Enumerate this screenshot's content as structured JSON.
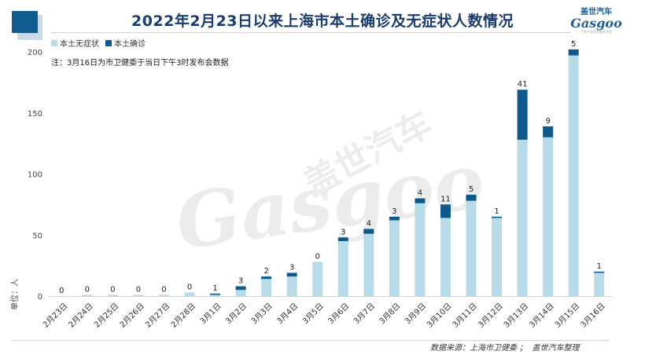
{
  "header": {
    "title": "2022年2月23日以来上海市本土确诊及无症状人数情况",
    "logo_cn": "盖世汽车",
    "logo_en": "Gasgoo",
    "logo_tagline": "汽车产业信息服务专家"
  },
  "legend": {
    "asymptomatic": "本土无症状",
    "confirmed": "本土确诊"
  },
  "note": "注：3月16日为市卫健委于当日下午3时发布会数据",
  "unit_label": "单位：人",
  "watermark": {
    "cn": "盖世汽车",
    "en": "Gasgoo"
  },
  "source": "数据来源：上海市卫健委 ；  盖世汽车整理",
  "colors": {
    "asymptomatic": "#b7dbe8",
    "confirmed": "#0d5a8a",
    "title": "#1a3c6e"
  },
  "chart_data": {
    "type": "bar",
    "stacked": true,
    "categories": [
      "2月23日",
      "2月24日",
      "2月25日",
      "2月26日",
      "2月27日",
      "2月28日",
      "3月1日",
      "3月2日",
      "3月3日",
      "3月4日",
      "3月5日",
      "3月6日",
      "3月7日",
      "3月8日",
      "3月9日",
      "3月10日",
      "3月11日",
      "3月12日",
      "3月13日",
      "3月14日",
      "3月15日",
      "3月16日"
    ],
    "series": [
      {
        "name": "本土无症状",
        "values": [
          0,
          1,
          1,
          1,
          1,
          3,
          1,
          5,
          14,
          16,
          28,
          45,
          51,
          62,
          76,
          64,
          78,
          64,
          128,
          130,
          197,
          19
        ]
      },
      {
        "name": "本土确诊",
        "values": [
          0,
          0,
          0,
          0,
          0,
          0,
          1,
          3,
          2,
          3,
          0,
          3,
          4,
          3,
          4,
          11,
          5,
          1,
          41,
          9,
          5,
          1
        ]
      }
    ],
    "data_labels": [
      0,
      0,
      0,
      0,
      0,
      0,
      1,
      3,
      2,
      3,
      0,
      3,
      4,
      3,
      4,
      11,
      5,
      1,
      41,
      9,
      5,
      1
    ],
    "ylim": [
      0,
      200
    ],
    "yticks": [
      0,
      50,
      100,
      150,
      200
    ],
    "ylabel": "单位：人",
    "grid": false,
    "legend_position": "top-left"
  }
}
